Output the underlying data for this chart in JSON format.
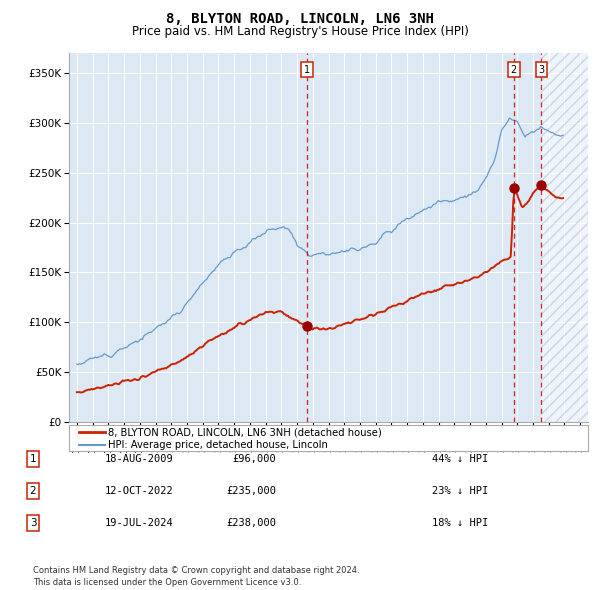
{
  "title": "8, BLYTON ROAD, LINCOLN, LN6 3NH",
  "subtitle": "Price paid vs. HM Land Registry's House Price Index (HPI)",
  "title_fontsize": 10,
  "subtitle_fontsize": 8.5,
  "background_color": "#ffffff",
  "plot_bg_color": "#dde8f5",
  "hpi_color": "#6699cc",
  "sale_color": "#cc2200",
  "sale_marker_color": "#990000",
  "vline_color": "#cc0000",
  "ylim": [
    0,
    370000
  ],
  "yticks": [
    0,
    50000,
    100000,
    150000,
    200000,
    250000,
    300000,
    350000
  ],
  "ytick_labels": [
    "£0",
    "£50K",
    "£100K",
    "£150K",
    "£200K",
    "£250K",
    "£300K",
    "£350K"
  ],
  "xmin": 1994.5,
  "xmax": 2027.5,
  "xtick_years": [
    1995,
    1996,
    1997,
    1998,
    1999,
    2000,
    2001,
    2002,
    2003,
    2004,
    2005,
    2006,
    2007,
    2008,
    2009,
    2010,
    2011,
    2012,
    2013,
    2014,
    2015,
    2016,
    2017,
    2018,
    2019,
    2020,
    2021,
    2022,
    2023,
    2024,
    2025,
    2026,
    2027
  ],
  "sale_transactions": [
    {
      "year": 2009.625,
      "price": 96000,
      "label": "1"
    },
    {
      "year": 2022.785,
      "price": 235000,
      "label": "2"
    },
    {
      "year": 2024.54,
      "price": 238000,
      "label": "3"
    }
  ],
  "hatch_start": 2024.54,
  "legend_entries": [
    "8, BLYTON ROAD, LINCOLN, LN6 3NH (detached house)",
    "HPI: Average price, detached house, Lincoln"
  ],
  "table_rows": [
    {
      "num": "1",
      "date": "18-AUG-2009",
      "price": "£96,000",
      "note": "44% ↓ HPI"
    },
    {
      "num": "2",
      "date": "12-OCT-2022",
      "price": "£235,000",
      "note": "23% ↓ HPI"
    },
    {
      "num": "3",
      "date": "19-JUL-2024",
      "price": "£238,000",
      "note": "18% ↓ HPI"
    }
  ],
  "footer": "Contains HM Land Registry data © Crown copyright and database right 2024.\nThis data is licensed under the Open Government Licence v3.0."
}
